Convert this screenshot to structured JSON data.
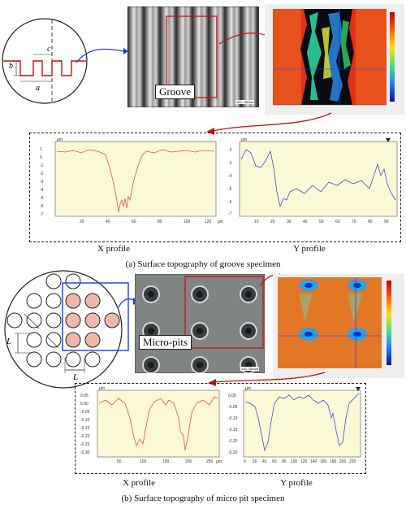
{
  "top": {
    "dim_labels": [
      "b",
      "c",
      "a"
    ],
    "micrograph_label": "Groove",
    "micrograph_scale": "100, 150um",
    "profile_x": {
      "unit": "µm",
      "y_ticks": [
        "1",
        "0",
        "-1",
        "-2",
        "-3",
        "-4",
        "-5",
        "-6",
        "-7"
      ],
      "x_ticks": [
        "20",
        "40",
        "60",
        "80",
        "100",
        "120"
      ],
      "x_unit": "µm",
      "caption": "X profile"
    },
    "profile_y": {
      "unit": "µm",
      "y_ticks": [
        "-2",
        "-3",
        "-4",
        "-5",
        "-6",
        "-7"
      ],
      "x_ticks": [
        "10",
        "20",
        "30",
        "40",
        "50",
        "60",
        "70",
        "80",
        "90"
      ],
      "x_unit": "µm",
      "caption": "Y profile"
    },
    "caption": "(a) Surface topography of groove specimen"
  },
  "bottom": {
    "dim_labels": [
      "L",
      "L"
    ],
    "micrograph_label": "Micro-pits",
    "micrograph_scale": "100, 150um",
    "profile_x": {
      "unit": "µm",
      "y_ticks": [
        "0.05",
        "0.00",
        "-0.05",
        "-0.10",
        "-0.15",
        "-0.20",
        "-0.25",
        "-0.30"
      ],
      "x_ticks": [
        "50",
        "100",
        "150",
        "200",
        "250"
      ],
      "x_unit": "µm",
      "caption": "X profile"
    },
    "profile_y": {
      "unit": "µm",
      "y_ticks": [
        "0.00",
        "-0.05",
        "-0.10",
        "-0.15",
        "-0.20",
        "-0.25"
      ],
      "x_ticks": [
        "0",
        "20",
        "40",
        "60",
        "80",
        "100",
        "120",
        "140",
        "160",
        "180",
        "200",
        "220"
      ],
      "x_unit": "µm",
      "caption": "Y profile"
    },
    "caption": "(b) Surface topography of micro pit specimen"
  },
  "colors": {
    "plot_bg": "#fbf8d6",
    "x_line": "#e05050",
    "y_line": "#4a4ad0",
    "accent_red": "#cc1111",
    "accent_blue": "#1a3aff"
  }
}
